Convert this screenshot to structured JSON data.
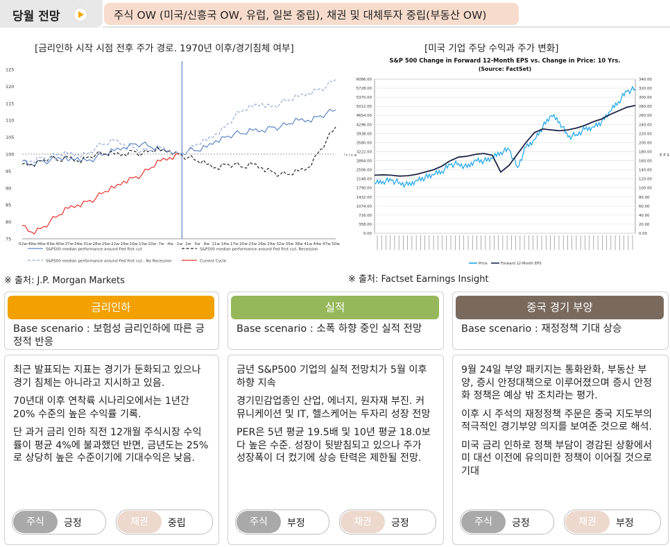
{
  "header": {
    "title": "당월 전망",
    "banner": "주식 OW (미국/신흥국 OW, 유럽, 일본 중립), 채권 및 대체투자 중립(부동산 OW)"
  },
  "left_chart": {
    "title": "[금리인하 시작 시점 전후 주가 경로. 1970년 이후/경기침체 여부]",
    "source": "※ 출처: J.P. Morgan Markets",
    "chart_data": {
      "type": "line",
      "yticks": [
        "125",
        "120",
        "115",
        "110",
        "105",
        "100",
        "95",
        "90",
        "85",
        "80",
        "75"
      ],
      "xticks": [
        "-52w",
        "-49w",
        "-46w",
        "-43w",
        "-40w",
        "-37w",
        "-34w",
        "-31w",
        "-28w",
        "-25w",
        "-22w",
        "-19w",
        "-16w",
        "-13w",
        "-10w",
        "-7w",
        "-4w",
        "-1w",
        "2w",
        "5w",
        "8w",
        "11w",
        "14w",
        "17w",
        "20w",
        "23w",
        "26w",
        "29w",
        "32w",
        "35w",
        "38w",
        "41w",
        "44w",
        "47w",
        "50w"
      ],
      "ylim": [
        75,
        125
      ],
      "series": [
        {
          "name": "S&P500 median performance around Fed first cut",
          "color": "#5b84c4",
          "style": "solid",
          "values": [
            98,
            97,
            98,
            98,
            99,
            98,
            99,
            98,
            99,
            100,
            101,
            102,
            103,
            103,
            102,
            101,
            101,
            100,
            101,
            101,
            102,
            104,
            105,
            106,
            106,
            107,
            107,
            108,
            108,
            109,
            110,
            110,
            111,
            112,
            113
          ]
        },
        {
          "name": "S&P500 median performance around Fed first cut- Recession",
          "color": "#222222",
          "style": "dashed",
          "values": [
            97,
            97,
            98,
            99,
            98,
            99,
            98,
            99,
            100,
            100,
            100,
            100,
            101,
            100,
            101,
            101,
            101,
            100,
            99,
            98,
            97,
            96,
            97,
            97,
            96,
            97,
            96,
            95,
            94,
            94,
            95,
            96,
            100,
            104,
            108
          ]
        },
        {
          "name": "S&P500 median performance around Fed first cut - No Recession",
          "color": "#8fa9d8",
          "style": "dashed",
          "values": [
            98,
            98,
            99,
            99,
            100,
            100,
            100,
            100,
            102,
            103,
            104,
            103,
            102,
            101,
            101,
            102,
            101,
            100,
            101,
            103,
            104,
            106,
            108,
            111,
            113,
            114,
            115,
            114,
            115,
            116,
            117,
            118,
            119,
            120,
            122
          ]
        },
        {
          "name": "Current Cycle",
          "color": "#e8312a",
          "style": "solid",
          "values": [
            79,
            77,
            78,
            80,
            82,
            84,
            85,
            86,
            87,
            89,
            90,
            92,
            93,
            94,
            96,
            98,
            99,
            100
          ]
        }
      ]
    }
  },
  "right_chart": {
    "title": "[미국 기업 주당 수익과 주가 변화]",
    "heading": "S&P 500 Change in Forward 12-Month EPS vs. Change in Price: 10 Yrs.",
    "subheading": "(Source: FactSet)",
    "source": "※ 출처: Factset Earnings Insight",
    "chart_data": {
      "type": "line",
      "left_ticks": [
        "6086.00",
        "5728.00",
        "5370.00",
        "5012.00",
        "4654.00",
        "4296.00",
        "3938.00",
        "3580.00",
        "3222.00",
        "2864.00",
        "2506.00",
        "2148.00",
        "1790.00",
        "1432.00",
        "1074.00",
        "716.00",
        "358.00",
        "0.00"
      ],
      "right_ticks": [
        "340.00",
        "320.00",
        "300.00",
        "280.00",
        "260.00",
        "240.00",
        "220.00",
        "200.00",
        "180.00",
        "160.00",
        "140.00",
        "120.00",
        "100.00",
        "80.00",
        "60.00",
        "40.00",
        "20.00",
        "0.00"
      ],
      "left_label": "P r i c e",
      "right_label": "E P S",
      "series": [
        {
          "name": "Price",
          "color": "#1aa3e8",
          "values": [
            1950,
            2050,
            2080,
            2000,
            1900,
            2100,
            2200,
            2300,
            2450,
            2700,
            2750,
            2600,
            2900,
            2850,
            2950,
            3200,
            3300,
            2600,
            3400,
            3700,
            4200,
            4650,
            4400,
            3800,
            3900,
            4100,
            4200,
            4400,
            4800,
            5200,
            5600,
            5700
          ]
        },
        {
          "name": "Forward 12-Month EPS",
          "color": "#1c2346",
          "values": [
            128,
            129,
            128,
            126,
            127,
            130,
            135,
            140,
            148,
            160,
            168,
            170,
            174,
            176,
            172,
            135,
            150,
            175,
            200,
            222,
            230,
            228,
            226,
            228,
            232,
            238,
            246,
            252,
            262,
            270,
            278,
            282
          ]
        }
      ]
    }
  },
  "cards": [
    {
      "pill": "금리인하",
      "pill_color": "#f2a100",
      "scenario": "Base scenario : 보험성 금리인하에 따른 긍정적 반응",
      "paragraphs": [
        "최근 발표되는 지표는 경기가 둔화되고 있으나 경기 침체는 아니라고 지시하고 있음.",
        "70년대 이후 연착륙 시나리오에서는 1년간 20% 수준의 높은 수익률 기록.",
        "단 과거 금리 인하 직전 12개월 주식시장 수익률이 평균 4%에 불과했던 반면, 금년도는 25%로 상당히 높은 수준이기에 기대수익은 낮음."
      ],
      "tags": [
        {
          "label": "주식",
          "value": "긍정"
        },
        {
          "label": "채권",
          "value": "중립"
        }
      ]
    },
    {
      "pill": "실적",
      "pill_color": "#96b85a",
      "scenario": "Base scenario : 소폭 하향 중인 실적 전망",
      "paragraphs": [
        "금년 S&P500 기업의 실적 전망치가 5월 이후 하향 지속",
        "경기민감업종인 산업, 에너지, 원자재 부진. 커뮤니케이션 및 IT, 헬스케어는 두자리 성장 전망",
        "PER은 5년 평균 19.5배 및 10년 평균 18.0보다 높은 수준. 성장이 뒷받침되고 있으나 주가 성장폭이 더 컸기에 상승 탄력은 제한될 전망."
      ],
      "tags": [
        {
          "label": "주식",
          "value": "부정"
        },
        {
          "label": "채권",
          "value": "긍정"
        }
      ]
    },
    {
      "pill": "중국 경기 부양",
      "pill_color": "#7a6a5e",
      "scenario": "Base scenario : 재정정책 기대 상승",
      "paragraphs": [
        "9월 24일 부양 패키지는 통화완화, 부동산 부양, 증시 안정대책으로 이루어졌으며 증시 안정화 정책은 예상 밖 조치라는 평가.",
        "이후 시 주석의 재정정책 주문은 중국 지도부의 적극적인 경기부양 의지를 보여준 것으로 해석.",
        "미국 금리 인하로 정책 부담이 경감된 상황에서 미 대선 이전에 유의미한 정책이 이어질 것으로 기대"
      ],
      "tags": [
        {
          "label": "주식",
          "value": "긍정"
        },
        {
          "label": "채권",
          "value": "부정"
        }
      ]
    }
  ]
}
